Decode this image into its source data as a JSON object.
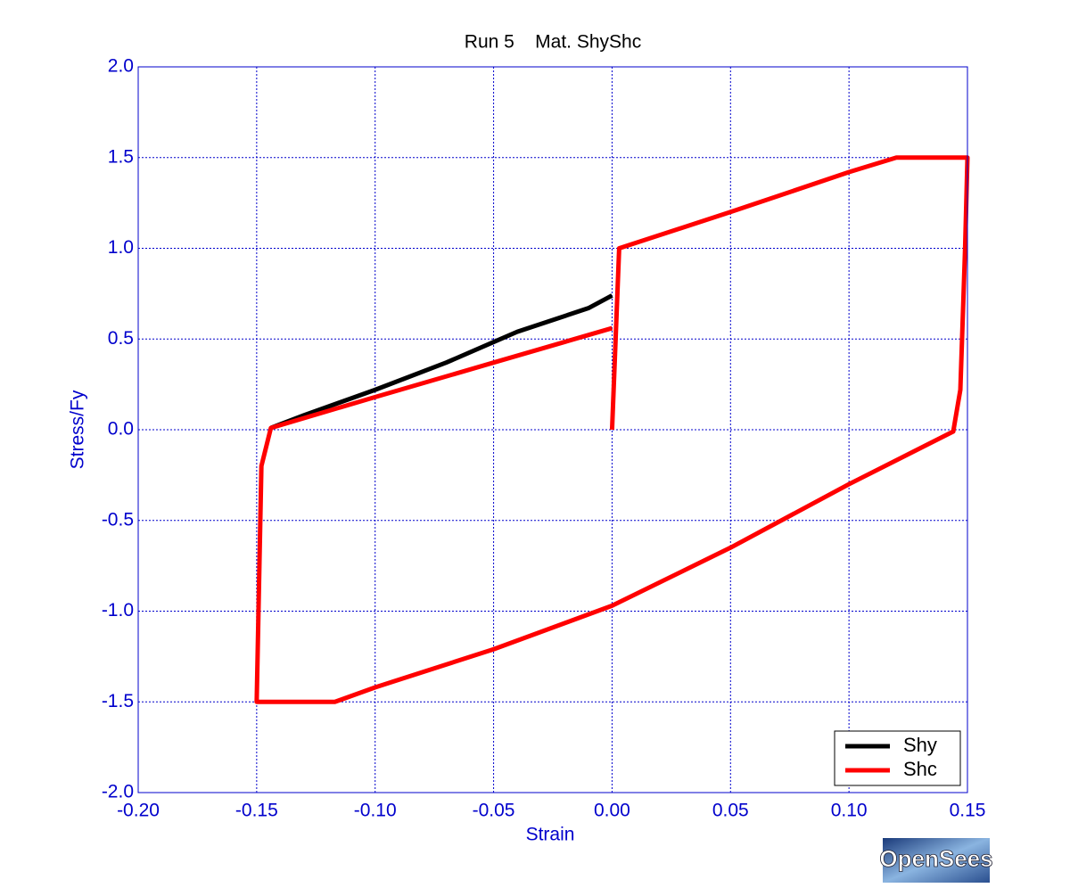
{
  "chart_data": {
    "type": "line",
    "title": "Run 5    Mat. ShyShc",
    "xlabel": "Strain",
    "ylabel": "Stress/Fy",
    "xlim": [
      -0.2,
      0.15
    ],
    "ylim": [
      -2.0,
      2.0
    ],
    "xticks": [
      {
        "value": -0.2,
        "label": "-0.20"
      },
      -0.15,
      {
        "value": -0.1,
        "label": "-0.10"
      },
      -0.05,
      {
        "value": 0,
        "label": "0.00"
      },
      0.05,
      {
        "value": 0.1,
        "label": "0.10"
      },
      0.15
    ],
    "yticks": [
      {
        "value": 2,
        "label": "2.0"
      },
      1.5,
      {
        "value": 1,
        "label": "1.0"
      },
      0.5,
      {
        "value": 0,
        "label": "0.0"
      },
      -0.5,
      {
        "value": -1,
        "label": "-1.0"
      },
      -1.5,
      {
        "value": -2,
        "label": "-2.0"
      }
    ],
    "grid": true,
    "legend": "lower right",
    "series": [
      {
        "name": "Shy",
        "color": "#000000",
        "x": [
          -0.144,
          -0.13,
          -0.1,
          -0.07,
          -0.04,
          -0.01,
          0.0
        ],
        "values": [
          0.01,
          0.08,
          0.22,
          0.37,
          0.54,
          0.67,
          0.74
        ]
      },
      {
        "name": "Shc",
        "color": "#ff0000",
        "x": [
          0.0,
          0.003,
          0.05,
          0.1,
          0.12,
          0.15,
          0.149,
          0.147,
          0.144,
          0.1,
          0.05,
          0.0,
          -0.05,
          -0.1,
          -0.117,
          -0.15,
          -0.148,
          -0.144,
          -0.1,
          -0.05,
          0.0
        ],
        "values": [
          0.0,
          1.0,
          1.2,
          1.42,
          1.5,
          1.5,
          1.0,
          0.22,
          -0.01,
          -0.3,
          -0.65,
          -0.97,
          -1.21,
          -1.42,
          -1.5,
          -1.5,
          -0.2,
          0.01,
          0.18,
          0.37,
          0.56
        ]
      }
    ]
  },
  "logo": "OpenSees"
}
